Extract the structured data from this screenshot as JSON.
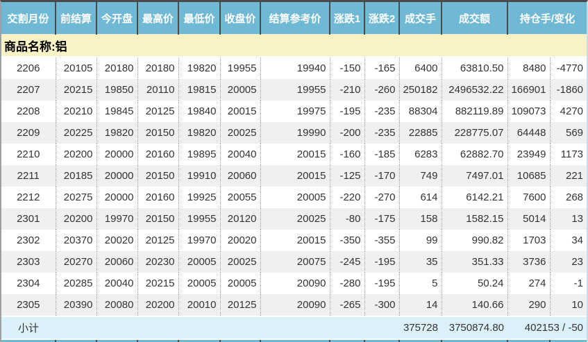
{
  "table": {
    "product_label": "商品名称:铝",
    "headers": [
      "交割月份",
      "前结算",
      "今开盘",
      "最高价",
      "最低价",
      "收盘价",
      "结算参考价",
      "涨跌1",
      "涨跌2",
      "成交手",
      "成交额",
      "持仓手/变化"
    ],
    "rows": [
      [
        "2206",
        "20105",
        "20180",
        "20180",
        "19820",
        "19955",
        "19940",
        "-150",
        "-165",
        "6400",
        "63810.50",
        "8480",
        "-4770"
      ],
      [
        "2207",
        "20215",
        "19850",
        "20110",
        "19815",
        "20005",
        "19955",
        "-210",
        "-260",
        "250182",
        "2496532.22",
        "166901",
        "-1860"
      ],
      [
        "2208",
        "20210",
        "19845",
        "20125",
        "19840",
        "20015",
        "19975",
        "-195",
        "-235",
        "88304",
        "882119.89",
        "109073",
        "4270"
      ],
      [
        "2209",
        "20225",
        "19820",
        "20150",
        "19820",
        "20025",
        "19990",
        "-200",
        "-235",
        "22885",
        "228775.07",
        "64448",
        "569"
      ],
      [
        "2210",
        "20200",
        "20000",
        "20160",
        "19895",
        "20040",
        "20015",
        "-160",
        "-185",
        "6283",
        "62882.70",
        "23949",
        "1173"
      ],
      [
        "2211",
        "20185",
        "20000",
        "20150",
        "19910",
        "20060",
        "20015",
        "-125",
        "-170",
        "749",
        "7497.01",
        "10685",
        "221"
      ],
      [
        "2212",
        "20275",
        "20000",
        "20160",
        "19925",
        "20055",
        "20005",
        "-220",
        "-270",
        "614",
        "6142.21",
        "7600",
        "268"
      ],
      [
        "2301",
        "20200",
        "19970",
        "20150",
        "19955",
        "20120",
        "20025",
        "-80",
        "-175",
        "158",
        "1582.15",
        "5014",
        "13"
      ],
      [
        "2302",
        "20370",
        "20020",
        "20125",
        "19970",
        "20020",
        "20015",
        "-350",
        "-355",
        "99",
        "990.82",
        "1703",
        "34"
      ],
      [
        "2303",
        "20270",
        "20060",
        "20230",
        "20005",
        "20025",
        "20075",
        "-245",
        "-195",
        "35",
        "351.33",
        "3736",
        "23"
      ],
      [
        "2304",
        "20285",
        "20040",
        "20215",
        "20005",
        "20005",
        "20090",
        "-280",
        "-195",
        "5",
        "50.24",
        "274",
        "-1"
      ],
      [
        "2305",
        "20390",
        "20080",
        "20200",
        "20010",
        "20125",
        "20090",
        "-265",
        "-300",
        "14",
        "140.66",
        "290",
        "10"
      ]
    ],
    "subtotal": {
      "label": "小计",
      "volume": "375728",
      "turnover": "3750874.80",
      "oi_change": "402153 / -50"
    }
  },
  "colors": {
    "header_bg": "#6FB9D4",
    "border_dark": "#4A4A4A",
    "band_yellow": "#F8F2C5",
    "row_alt": "#F0F0F0",
    "subtotal_bg": "#DCF0F9",
    "text_dark": "#333333"
  }
}
